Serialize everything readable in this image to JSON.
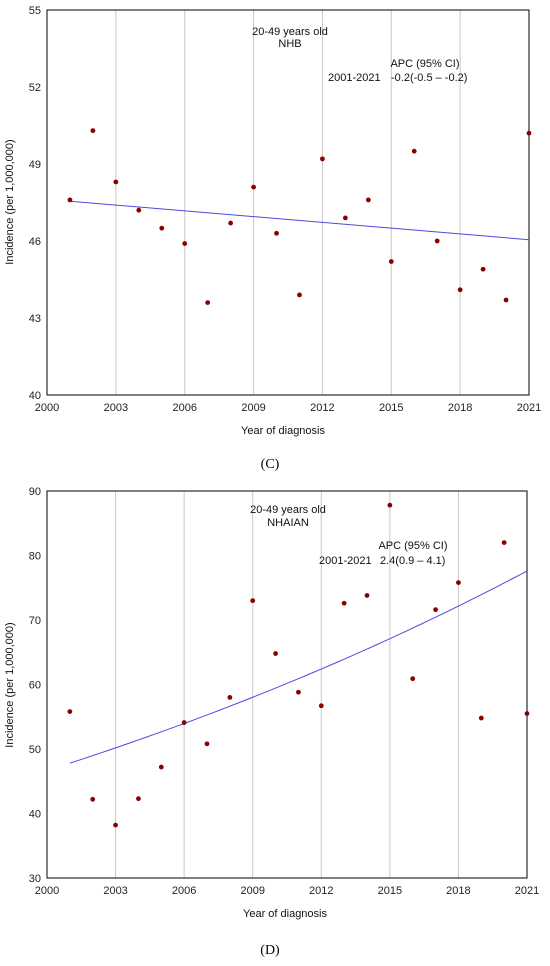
{
  "chart_data": [
    {
      "type": "scatter",
      "panel_label": "(C)",
      "annotation_lines": [
        "20-49 years old",
        "NHB"
      ],
      "apc_header": "APC (95% CI)",
      "period": "2001-2021",
      "apc_value": "-0.2(-0.5 – -0.2)",
      "xlabel": "Year of diagnosis",
      "ylabel": "Incidence (per 1,000,000)",
      "xlim": [
        2000,
        2021
      ],
      "ylim": [
        40,
        55
      ],
      "x_ticks": [
        2000,
        2003,
        2006,
        2009,
        2012,
        2015,
        2018,
        2021
      ],
      "y_ticks": [
        40,
        43,
        46,
        49,
        52,
        55
      ],
      "grid": "vertical",
      "points": {
        "x": [
          2001,
          2002,
          2003,
          2004,
          2005,
          2006,
          2007,
          2008,
          2009,
          2010,
          2011,
          2012,
          2013,
          2014,
          2015,
          2016,
          2017,
          2018,
          2019,
          2020,
          2021
        ],
        "y": [
          47.6,
          50.3,
          48.3,
          47.2,
          46.5,
          45.9,
          43.6,
          46.7,
          48.1,
          46.3,
          43.9,
          49.2,
          46.9,
          47.6,
          45.2,
          49.5,
          46.0,
          44.1,
          44.9,
          43.7,
          50.2
        ]
      },
      "fit": {
        "x": [
          2001,
          2021
        ],
        "y": [
          47.55,
          46.05
        ]
      },
      "colors": {
        "points": "#8b0000",
        "fit": "#4a4ae0",
        "grid": "#c8c8c8"
      }
    },
    {
      "type": "scatter",
      "panel_label": "(D)",
      "annotation_lines": [
        "20-49 years old",
        "NHAIAN"
      ],
      "apc_header": "APC (95% CI)",
      "period": "2001-2021",
      "apc_value": "2.4(0.9 – 4.1)",
      "xlabel": "Year of diagnosis",
      "ylabel": "Incidence (per 1,000,000)",
      "xlim": [
        2000,
        2021
      ],
      "ylim": [
        30,
        90
      ],
      "x_ticks": [
        2000,
        2003,
        2006,
        2009,
        2012,
        2015,
        2018,
        2021
      ],
      "y_ticks": [
        30,
        40,
        50,
        60,
        70,
        80,
        90
      ],
      "grid": "vertical",
      "points": {
        "x": [
          2001,
          2002,
          2003,
          2004,
          2005,
          2006,
          2007,
          2008,
          2009,
          2010,
          2011,
          2012,
          2013,
          2014,
          2015,
          2016,
          2017,
          2018,
          2019,
          2020,
          2021
        ],
        "y": [
          55.8,
          42.2,
          38.2,
          42.3,
          47.2,
          54.1,
          50.8,
          58.0,
          73.0,
          64.8,
          58.8,
          56.7,
          72.6,
          73.8,
          87.8,
          60.9,
          71.6,
          75.8,
          54.8,
          82.0,
          55.5
        ]
      },
      "fit": {
        "x": [
          2001,
          2003,
          2006,
          2009,
          2012,
          2015,
          2018,
          2021
        ],
        "y": [
          47.8,
          50.2,
          54.1,
          58.1,
          62.4,
          67.0,
          71.9,
          77.6
        ]
      },
      "colors": {
        "points": "#8b0000",
        "fit": "#4a4ae0",
        "grid": "#c8c8c8"
      }
    }
  ]
}
